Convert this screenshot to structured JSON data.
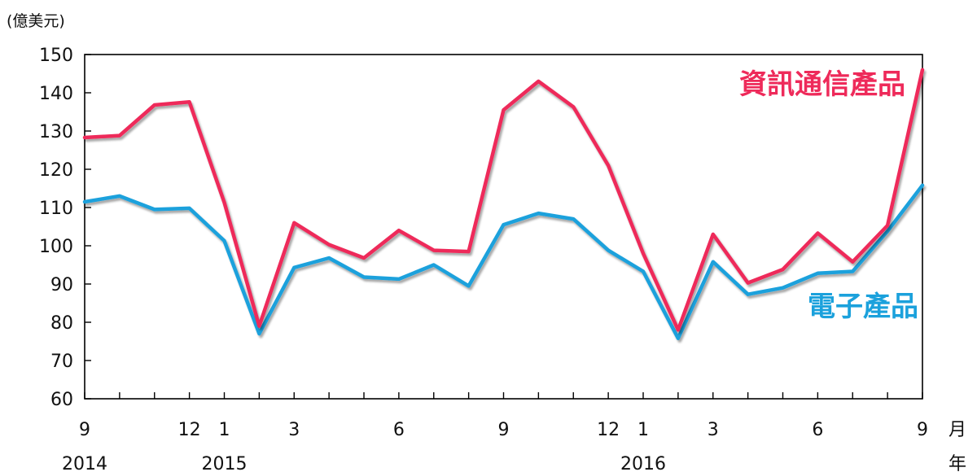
{
  "chart_data": {
    "type": "line",
    "y_unit_label": "(億美元)",
    "x_unit_month": "月",
    "x_unit_year": "年",
    "ylim": [
      60,
      150
    ],
    "y_ticks": [
      "60",
      "70",
      "80",
      "90",
      "100",
      "110",
      "120",
      "130",
      "140",
      "150"
    ],
    "grid": false,
    "x_month_labels": [
      {
        "index": 0,
        "label": "9"
      },
      {
        "index": 3,
        "label": "12"
      },
      {
        "index": 4,
        "label": "1"
      },
      {
        "index": 6,
        "label": "3"
      },
      {
        "index": 9,
        "label": "6"
      },
      {
        "index": 12,
        "label": "9"
      },
      {
        "index": 15,
        "label": "12"
      },
      {
        "index": 16,
        "label": "1"
      },
      {
        "index": 18,
        "label": "3"
      },
      {
        "index": 21,
        "label": "6"
      },
      {
        "index": 24,
        "label": "9"
      }
    ],
    "x_year_labels": [
      {
        "index": 0,
        "label": "2014"
      },
      {
        "index": 4,
        "label": "2015"
      },
      {
        "index": 16,
        "label": "2016"
      }
    ],
    "x": [
      "2014-09",
      "2014-10",
      "2014-11",
      "2014-12",
      "2015-01",
      "2015-02",
      "2015-03",
      "2015-04",
      "2015-05",
      "2015-06",
      "2015-07",
      "2015-08",
      "2015-09",
      "2015-10",
      "2015-11",
      "2015-12",
      "2016-01",
      "2016-02",
      "2016-03",
      "2016-04",
      "2016-05",
      "2016-06",
      "2016-07",
      "2016-08",
      "2016-09"
    ],
    "series": [
      {
        "name": "資訊通信產品",
        "color": "#ee2a5a",
        "values": [
          128.3,
          128.8,
          136.8,
          137.6,
          111.3,
          79.0,
          106.0,
          100.3,
          96.8,
          104.0,
          98.8,
          98.5,
          135.5,
          143.0,
          136.3,
          121.0,
          98.0,
          78.0,
          103.0,
          90.3,
          93.8,
          103.3,
          95.8,
          105.3,
          146.0
        ]
      },
      {
        "name": "電子產品",
        "color": "#1ba1dc",
        "values": [
          111.5,
          113.0,
          109.5,
          109.8,
          101.3,
          77.0,
          94.3,
          96.8,
          91.8,
          91.3,
          95.0,
          89.5,
          105.5,
          108.5,
          107.0,
          98.8,
          93.3,
          75.8,
          95.8,
          87.3,
          89.0,
          92.8,
          93.3,
          103.8,
          115.8
        ]
      }
    ]
  }
}
